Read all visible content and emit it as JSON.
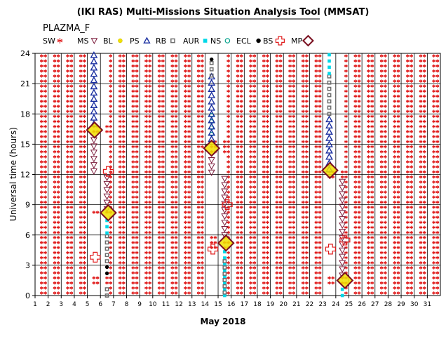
{
  "chart_data": {
    "type": "scatter",
    "title": "(IKI RAS) Multi-Missions Situation Analysis Tool (MMSAT)",
    "subtitle": "PLAZMA_F",
    "xlabel": "May 2018",
    "ylabel": "Universal time (hours)",
    "x_ticks": [
      "1",
      "2",
      "3",
      "4",
      "5",
      "6",
      "7",
      "8",
      "9",
      "10",
      "11",
      "12",
      "13",
      "14",
      "15",
      "16",
      "17",
      "18",
      "19",
      "20",
      "21",
      "22",
      "23",
      "24",
      "25",
      "26",
      "27",
      "28",
      "29",
      "30",
      "31"
    ],
    "y_ticks": [
      "0",
      "3",
      "6",
      "9",
      "12",
      "15",
      "18",
      "21",
      "24"
    ],
    "xlim": [
      1,
      32
    ],
    "ylim": [
      0,
      24
    ],
    "grid": true,
    "legend_placement": "top",
    "legend": [
      {
        "label": "SW",
        "marker": "star",
        "color": "#e01c1c"
      },
      {
        "label": "MS",
        "marker": "triangle-down",
        "color": "#7a1a3a"
      },
      {
        "label": "BL",
        "marker": "circle-filled",
        "color": "#f0e000"
      },
      {
        "label": "PS",
        "marker": "triangle-up",
        "color": "#1a2fa0"
      },
      {
        "label": "RB",
        "marker": "square",
        "color": "#6e6e6e"
      },
      {
        "label": "AUR",
        "marker": "square-filled",
        "color": "#00d8e8"
      },
      {
        "label": "NS",
        "marker": "circle-open",
        "color": "#00a08a"
      },
      {
        "label": "ECL",
        "marker": "circle-filled",
        "color": "#000000"
      },
      {
        "label": "BS",
        "marker": "cross",
        "color": "#e01c1c"
      },
      {
        "label": "MP",
        "marker": "diamond",
        "color": "#7a1020"
      }
    ],
    "orbits": [
      {
        "day_start": 5.5,
        "day_end": 6.5,
        "segments": [
          {
            "region": "RB",
            "from": 0.0,
            "to": 1.0
          },
          {
            "region": "ECL",
            "from": 2.2,
            "to": 3.4
          },
          {
            "region": "RB",
            "from": 3.4,
            "to": 6.2
          },
          {
            "region": "AUR",
            "from": 6.2,
            "to": 7.6
          },
          {
            "region": "MS",
            "from": 8.6,
            "to": 16.0
          },
          {
            "region": "PS",
            "from": 17.0,
            "to": 24.0
          }
        ],
        "mp": [
          {
            "x": 6.6,
            "y": 8.2
          },
          {
            "x": 5.55,
            "y": 16.4
          }
        ],
        "bs": [
          {
            "x": 5.6,
            "y": 3.8
          },
          {
            "x": 6.6,
            "y": 12.3
          }
        ]
      },
      {
        "day_start": 14.5,
        "day_end": 15.5,
        "segments": [
          {
            "region": "AUR",
            "from": 0.0,
            "to": 4.5
          },
          {
            "region": "RB",
            "from": 0.3,
            "to": 4.0
          },
          {
            "region": "MS",
            "from": 6.0,
            "to": 14.0
          },
          {
            "region": "NS",
            "from": 16.0,
            "to": 18.0
          },
          {
            "region": "PS",
            "from": 15.5,
            "to": 21.8
          },
          {
            "region": "RB",
            "from": 21.8,
            "to": 23.4
          },
          {
            "region": "ECL",
            "from": 23.4,
            "to": 24.0
          }
        ],
        "mp": [
          {
            "x": 15.6,
            "y": 5.2
          },
          {
            "x": 14.5,
            "y": 14.6
          }
        ],
        "bs": [
          {
            "x": 14.6,
            "y": 4.6
          },
          {
            "x": 15.7,
            "y": 9.0
          }
        ]
      },
      {
        "day_start": 23.5,
        "day_end": 24.5,
        "segments": [
          {
            "region": "AUR",
            "from": 0.0,
            "to": 1.0
          },
          {
            "region": "MS",
            "from": 2.0,
            "to": 11.5
          },
          {
            "region": "PS",
            "from": 12.5,
            "to": 18.0
          },
          {
            "region": "RB",
            "from": 18.0,
            "to": 22.0
          },
          {
            "region": "AUR",
            "from": 22.0,
            "to": 24.0
          }
        ],
        "mp": [
          {
            "x": 24.7,
            "y": 1.5
          },
          {
            "x": 23.55,
            "y": 12.4
          }
        ],
        "bs": [
          {
            "x": 23.6,
            "y": 4.6
          },
          {
            "x": 24.7,
            "y": 5.5
          }
        ]
      }
    ]
  }
}
